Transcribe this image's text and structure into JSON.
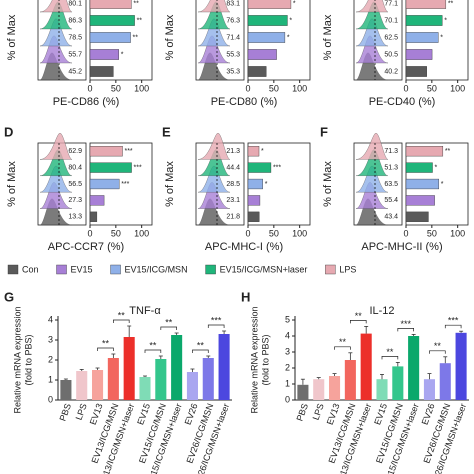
{
  "legend": {
    "names": [
      "Con",
      "EV15",
      "EV15/ICG/MSN",
      "EV15/ICG/MSN+laser",
      "LPS"
    ],
    "colors": [
      "#5a5a5a",
      "#a77fd6",
      "#8fb0e8",
      "#1fb57a",
      "#e6a9b1"
    ]
  },
  "chart_data": [
    {
      "type": "hbar",
      "xlabel": "PE-CD86 (%)",
      "ylabel": "% of Max",
      "values": [
        80.1,
        86.3,
        78.5,
        55.7,
        45.2
      ],
      "annotations": [
        "**",
        "**",
        "**",
        "*",
        null
      ],
      "xlim": [
        0,
        120
      ],
      "xticks": [
        0,
        50,
        100
      ]
    },
    {
      "type": "hbar",
      "xlabel": "PE-CD80 (%)",
      "ylabel": "% of Max",
      "values": [
        83.1,
        76.3,
        71.4,
        55.3,
        35.3
      ],
      "annotations": [
        "*",
        "*",
        "*",
        null,
        null
      ],
      "xlim": [
        0,
        120
      ],
      "xticks": [
        0,
        50,
        100
      ]
    },
    {
      "type": "hbar",
      "xlabel": "PE-CD40 (%)",
      "ylabel": "% of Max",
      "values": [
        77.1,
        70.1,
        62.5,
        50.5,
        40.2
      ],
      "annotations": [
        "**",
        "*",
        "*",
        null,
        null
      ],
      "xlim": [
        0,
        120
      ],
      "xticks": [
        0,
        50,
        100
      ]
    },
    {
      "type": "hbar",
      "panel": "D",
      "xlabel": "APC-CCR7 (%)",
      "ylabel": "% of Max",
      "values": [
        62.9,
        80.4,
        56.5,
        27.3,
        13.3
      ],
      "annotations": [
        "***",
        "***",
        "***",
        null,
        null
      ],
      "xlim": [
        0,
        120
      ],
      "xticks": [
        0,
        50,
        100
      ]
    },
    {
      "type": "hbar",
      "panel": "E",
      "xlabel": "APC-MHC-I (%)",
      "ylabel": "% of Max",
      "values": [
        21.3,
        44.4,
        28.5,
        23.1,
        21.8
      ],
      "annotations": [
        "*",
        "***",
        "*",
        null,
        null
      ],
      "xlim": [
        0,
        120
      ],
      "xticks": [
        0,
        50,
        100
      ]
    },
    {
      "type": "hbar",
      "panel": "F",
      "xlabel": "APC-MHC-II (%)",
      "ylabel": "% of Max",
      "values": [
        71.3,
        51.3,
        63.5,
        55.4,
        43.4
      ],
      "annotations": [
        "**",
        "*",
        "*",
        null,
        null
      ],
      "xlim": [
        0,
        120
      ],
      "xticks": [
        0,
        50,
        100
      ]
    },
    {
      "type": "bar",
      "panel": "G",
      "title": "TNF-α",
      "ylabel": [
        "Relative mRNA expression",
        "(fold to PBS)"
      ],
      "categories": [
        "PBS",
        "LPS",
        "EV13",
        "EV13/ICG/MSN",
        "EV13/ICG/MSN+laser",
        "EV15",
        "EV15/ICG/MSN",
        "EV15/ICG/MSN+laser",
        "EV26",
        "EV26/ICG/MSN",
        "EV26/ICG/MSN+laser"
      ],
      "values": [
        1.0,
        1.45,
        1.5,
        2.1,
        3.15,
        1.15,
        2.05,
        3.25,
        1.4,
        2.1,
        3.3
      ],
      "errors": [
        0.05,
        0.08,
        0.1,
        0.2,
        0.55,
        0.05,
        0.15,
        0.1,
        0.15,
        0.1,
        0.15
      ],
      "colors": [
        "#6e6e6e",
        "#f0c6cb",
        "#f6a39c",
        "#f2665e",
        "#ec2f2a",
        "#7fdcb6",
        "#33c68c",
        "#0aa86b",
        "#a9a6f0",
        "#7d78e8",
        "#4c47df"
      ],
      "brackets": [
        {
          "from": 2,
          "to": 3,
          "label": "**"
        },
        {
          "from": 3,
          "to": 4,
          "label": "**"
        },
        {
          "from": 5,
          "to": 6,
          "label": "**"
        },
        {
          "from": 6,
          "to": 7,
          "label": "**"
        },
        {
          "from": 8,
          "to": 9,
          "label": "**"
        },
        {
          "from": 9,
          "to": 10,
          "label": "***"
        }
      ],
      "ylim": [
        0,
        4
      ],
      "yticks": [
        0,
        1,
        2,
        3,
        4
      ]
    },
    {
      "type": "bar",
      "panel": "H",
      "title": "IL-12",
      "ylabel": [
        "Relative mRNA expression",
        "(fold to PBS)"
      ],
      "categories": [
        "PBS",
        "LPS",
        "EV13",
        "EV13/ICG/MSN",
        "EV13/ICG/MSN+laser",
        "EV15",
        "EV15/ICG/MSN",
        "EV15/ICG/MSN+laser",
        "EV26",
        "EV26/ICG/MSN",
        "EV26/ICG/MSN+laser"
      ],
      "values": [
        0.95,
        1.3,
        1.5,
        2.5,
        4.15,
        1.3,
        2.1,
        4.0,
        1.3,
        2.3,
        4.2
      ],
      "errors": [
        0.35,
        0.1,
        0.15,
        0.45,
        0.45,
        0.3,
        0.25,
        0.1,
        0.35,
        0.4,
        0.1
      ],
      "colors": [
        "#6e6e6e",
        "#f0c6cb",
        "#f6a39c",
        "#f2665e",
        "#ec2f2a",
        "#7fdcb6",
        "#33c68c",
        "#0aa86b",
        "#a9a6f0",
        "#7d78e8",
        "#4c47df"
      ],
      "brackets": [
        {
          "from": 2,
          "to": 3,
          "label": "**"
        },
        {
          "from": 3,
          "to": 4,
          "label": "**"
        },
        {
          "from": 5,
          "to": 6,
          "label": "**"
        },
        {
          "from": 6,
          "to": 7,
          "label": "***"
        },
        {
          "from": 8,
          "to": 9,
          "label": "**"
        },
        {
          "from": 9,
          "to": 10,
          "label": "***"
        }
      ],
      "ylim": [
        0,
        5
      ],
      "yticks": [
        0,
        1,
        2,
        3,
        4,
        5
      ]
    }
  ]
}
